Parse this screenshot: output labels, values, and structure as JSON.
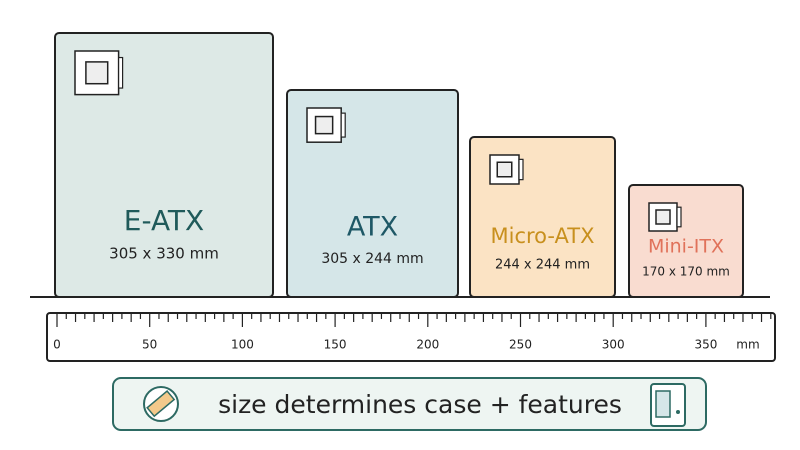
{
  "boards": [
    {
      "name": "E-ATX",
      "dims": "305 x 330 mm"
    },
    {
      "name": "ATX",
      "dims": "305 x 244 mm"
    },
    {
      "name": "Micro-ATX",
      "dims": "244 x 244 mm"
    },
    {
      "name": "Mini-ITX",
      "dims": "170 x 170 mm"
    }
  ],
  "ruler": {
    "labels": [
      0,
      50,
      100,
      150,
      200,
      250,
      300,
      350
    ],
    "unit": "mm"
  },
  "banner": {
    "text": "size determines case + features"
  }
}
